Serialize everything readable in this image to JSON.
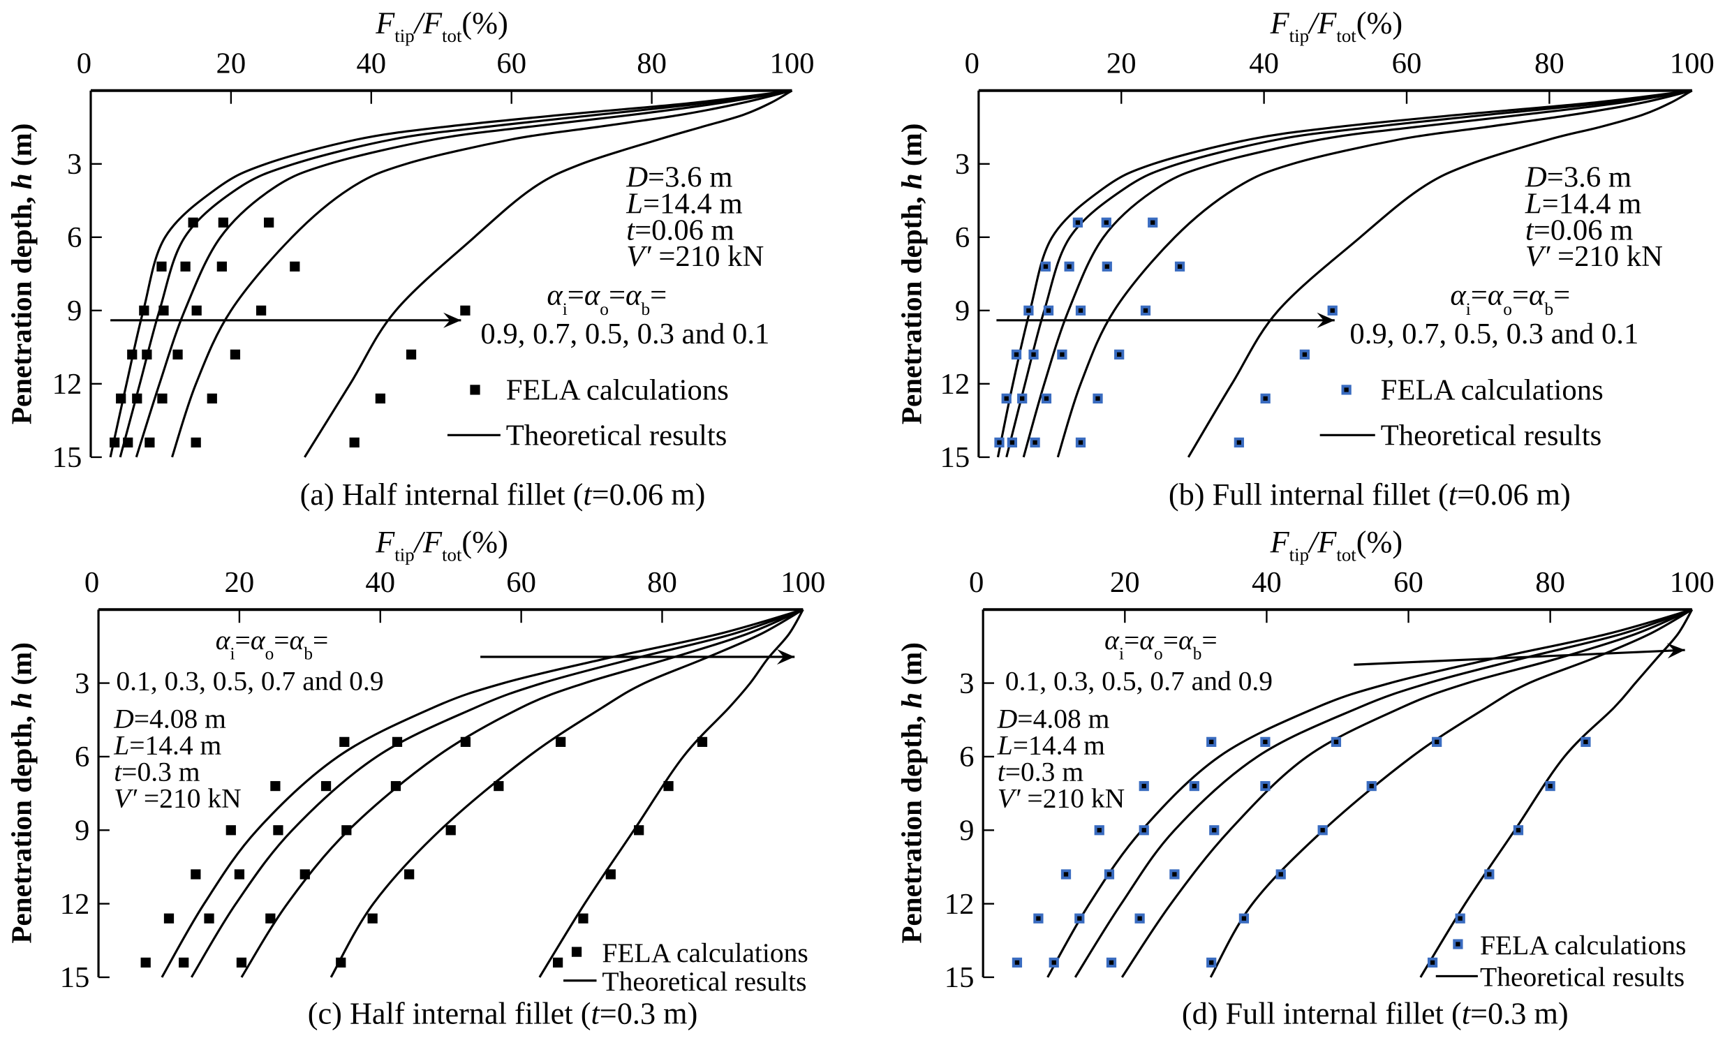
{
  "chart_data": [
    {
      "id": "a",
      "type": "scatter+line",
      "caption": {
        "prefix": "(a) Half internal fillet (",
        "var": "t",
        "suffix": "=0.06 m)"
      },
      "xlabel": {
        "sym1": "F",
        "sub1": "tip",
        "slash": "/",
        "sym2": "F",
        "sub2": "tot",
        "unit": "(%)"
      },
      "ylabel": {
        "prefix": "Penetration depth, ",
        "var": "h",
        "suffix": " (m)"
      },
      "xlim": [
        0,
        100
      ],
      "ylim": [
        0,
        15
      ],
      "y_inverted": true,
      "xticks": [
        0,
        20,
        40,
        60,
        80,
        100
      ],
      "yticks": [
        3,
        6,
        9,
        12,
        15
      ],
      "params": [
        {
          "var": "D",
          "text": "=3.6 m"
        },
        {
          "var": "L",
          "text": "=14.4 m"
        },
        {
          "var": "t",
          "text": "=0.06 m"
        },
        {
          "var": "V′",
          "text": " =210 kN"
        }
      ],
      "alpha_label": {
        "sym": "α",
        "subs": [
          "i",
          "o",
          "b"
        ],
        "eq": "="
      },
      "alpha_values": "0.9, 0.7, 0.5, 0.3 and 0.1",
      "arrow": {
        "from": [
          2.8,
          9.4
        ],
        "to": [
          52.8,
          9.4
        ]
      },
      "legend": {
        "markers": "FELA calculations",
        "line": "Theoretical results",
        "position": "bottom-right"
      },
      "marker_color": "#000000",
      "curves": {
        "h": [
          0,
          0.5,
          1,
          1.5,
          2,
          3,
          4,
          6,
          9,
          12,
          15
        ],
        "series": [
          {
            "alpha": 0.9,
            "x": [
              100,
              86,
              67,
              50,
              38,
              25,
              18,
              10.6,
              7.5,
              5.1,
              2.8
            ]
          },
          {
            "alpha": 0.7,
            "x": [
              100,
              88,
              72,
              56,
              43,
              29,
              21,
              13.4,
              9.8,
              7.0,
              4.2
            ]
          },
          {
            "alpha": 0.5,
            "x": [
              100,
              90,
              77,
              62,
              49,
              34,
              26,
              18.5,
              13.4,
              9.8,
              6.5
            ]
          },
          {
            "alpha": 0.3,
            "x": [
              100,
              93,
              84,
              72,
              60,
              45,
              37,
              28.7,
              20,
              15,
              11.6
            ]
          },
          {
            "alpha": 0.1,
            "x": [
              100,
              97,
              93,
              87,
              81,
              70,
              63,
              54.7,
              43.5,
              37,
              30.5
            ]
          }
        ]
      },
      "fela": {
        "h": [
          5.4,
          7.2,
          9,
          10.8,
          12.6,
          14.4
        ],
        "series": [
          {
            "alpha": 0.9,
            "x": [
              14.6,
              10.1,
              7.6,
              5.9,
              4.3,
              3.4
            ]
          },
          {
            "alpha": 0.7,
            "x": [
              18.9,
              13.5,
              10.4,
              8.0,
              6.6,
              5.3
            ]
          },
          {
            "alpha": 0.5,
            "x": [
              25.4,
              18.7,
              15.1,
              12.4,
              10.2,
              8.4
            ]
          },
          {
            "alpha": 0.3,
            "x": [
              null,
              29.1,
              24.3,
              20.6,
              17.3,
              15.0
            ]
          },
          {
            "alpha": 0.1,
            "x": [
              null,
              null,
              53.4,
              45.7,
              41.3,
              37.6
            ]
          }
        ]
      }
    },
    {
      "id": "b",
      "type": "scatter+line",
      "caption": {
        "prefix": "(b) Full internal fillet (",
        "var": "t",
        "suffix": "=0.06 m)"
      },
      "xlabel": {
        "sym1": "F",
        "sub1": "tip",
        "slash": "/",
        "sym2": "F",
        "sub2": "tot",
        "unit": "(%)"
      },
      "ylabel": {
        "prefix": "Penetration depth, ",
        "var": "h",
        "suffix": " (m)"
      },
      "xlim": [
        0,
        100
      ],
      "ylim": [
        0,
        15
      ],
      "y_inverted": true,
      "xticks": [
        0,
        20,
        40,
        60,
        80,
        100
      ],
      "yticks": [
        3,
        6,
        9,
        12,
        15
      ],
      "params": [
        {
          "var": "D",
          "text": "=3.6 m"
        },
        {
          "var": "L",
          "text": "=14.4 m"
        },
        {
          "var": "t",
          "text": "=0.06 m"
        },
        {
          "var": "V′",
          "text": " =210 kN"
        }
      ],
      "alpha_label": {
        "sym": "α",
        "subs": [
          "i",
          "o",
          "b"
        ],
        "eq": "="
      },
      "alpha_values": "0.9, 0.7, 0.5, 0.3 and 0.1",
      "arrow": {
        "from": [
          2.5,
          9.4
        ],
        "to": [
          49.9,
          9.4
        ]
      },
      "legend": {
        "markers": "FELA calculations",
        "line": "Theoretical results",
        "position": "bottom-right"
      },
      "marker_color": "#3a6cc0",
      "curves": {
        "h": [
          0,
          0.5,
          1,
          1.5,
          2,
          3,
          4,
          6,
          9,
          12,
          15
        ],
        "series": [
          {
            "alpha": 0.9,
            "x": [
              100,
              86,
              67,
              50,
              38,
              24.5,
              17.5,
              10.3,
              7.2,
              4.8,
              2.7
            ]
          },
          {
            "alpha": 0.7,
            "x": [
              100,
              88,
              71,
              55,
              42,
              28,
              20.5,
              12.8,
              9.2,
              6.5,
              3.9
            ]
          },
          {
            "alpha": 0.5,
            "x": [
              100,
              90,
              76,
              61,
              48,
              33,
              25,
              17.5,
              12.6,
              9.2,
              6.3
            ]
          },
          {
            "alpha": 0.3,
            "x": [
              100,
              93,
              83,
              71,
              59,
              44,
              36,
              27.5,
              19,
              14.3,
              11.1
            ]
          },
          {
            "alpha": 0.1,
            "x": [
              100,
              97,
              93,
              87,
              80,
              69,
              62,
              53.5,
              42,
              35.5,
              29.4
            ]
          }
        ]
      },
      "fela": {
        "h": [
          5.4,
          7.2,
          9,
          10.8,
          12.6,
          14.4
        ],
        "series": [
          {
            "alpha": 0.9,
            "x": [
              13.9,
              9.4,
              7.0,
              5.3,
              3.9,
              2.9
            ]
          },
          {
            "alpha": 0.7,
            "x": [
              17.9,
              12.7,
              9.8,
              7.7,
              6.1,
              4.7
            ]
          },
          {
            "alpha": 0.5,
            "x": [
              24.4,
              18.0,
              14.3,
              11.7,
              9.5,
              7.9
            ]
          },
          {
            "alpha": 0.3,
            "x": [
              null,
              28.2,
              23.4,
              19.7,
              16.7,
              14.3
            ]
          },
          {
            "alpha": 0.1,
            "x": [
              null,
              null,
              49.6,
              45.7,
              40.2,
              36.5
            ]
          }
        ]
      }
    },
    {
      "id": "c",
      "type": "scatter+line",
      "caption": {
        "prefix": "(c) Half internal fillet (",
        "var": "t",
        "suffix": "=0.3 m)"
      },
      "xlabel": {
        "sym1": "F",
        "sub1": "tip",
        "slash": "/",
        "sym2": "F",
        "sub2": "tot",
        "unit": "(%)"
      },
      "ylabel": {
        "prefix": "Penetration depth, ",
        "var": "h",
        "suffix": " (m)"
      },
      "xlim": [
        0,
        100
      ],
      "ylim": [
        0,
        15
      ],
      "y_inverted": true,
      "xticks": [
        0,
        20,
        40,
        60,
        80,
        100
      ],
      "yticks": [
        3,
        6,
        9,
        12,
        15
      ],
      "params": [
        {
          "var": "D",
          "text": "=4.08 m"
        },
        {
          "var": "L",
          "text": "=14.4 m"
        },
        {
          "var": "t",
          "text": "=0.3 m"
        },
        {
          "var": "V′",
          "text": " =210 kN"
        }
      ],
      "alpha_label": {
        "sym": "α",
        "subs": [
          "i",
          "o",
          "b"
        ],
        "eq": "="
      },
      "alpha_values": "0.1, 0.3, 0.5, 0.7 and 0.9",
      "arrow": {
        "from": [
          54.2,
          1.93
        ],
        "to": [
          98.8,
          1.93
        ]
      },
      "legend": {
        "markers": "FELA calculations",
        "line": "Theoretical results",
        "position": "bottom-right"
      },
      "marker_color": "#000000",
      "curves": {
        "h": [
          0,
          1,
          2,
          3,
          4,
          6,
          9,
          12,
          15
        ],
        "series": [
          {
            "alpha": 0.1,
            "x": [
              100,
              88,
              72,
              57.5,
              47.5,
              34,
              22.5,
              15,
              9.0
            ]
          },
          {
            "alpha": 0.3,
            "x": [
              100,
              90,
              76,
              63,
              53.5,
              39.5,
              27.5,
              19.5,
              13.2
            ]
          },
          {
            "alpha": 0.5,
            "x": [
              100,
              92,
              81,
              69,
              60,
              48,
              35.5,
              26.8,
              20.3
            ]
          },
          {
            "alpha": 0.7,
            "x": [
              100,
              94,
              86,
              77.5,
              71.5,
              61,
              48.5,
              39,
              33.0
            ]
          },
          {
            "alpha": 0.9,
            "x": [
              100,
              98,
              95,
              92.5,
              89.5,
              83,
              76,
              69,
              62.6
            ]
          }
        ]
      },
      "fela": {
        "h": [
          5.4,
          7.2,
          9,
          10.8,
          12.6,
          14.4
        ],
        "series": [
          {
            "alpha": 0.1,
            "x": [
              34.9,
              25.1,
              18.8,
              13.8,
              10.0,
              6.7
            ]
          },
          {
            "alpha": 0.3,
            "x": [
              42.4,
              32.3,
              25.5,
              20.0,
              15.7,
              12.1
            ]
          },
          {
            "alpha": 0.5,
            "x": [
              52.1,
              42.2,
              35.2,
              29.3,
              24.4,
              20.3
            ]
          },
          {
            "alpha": 0.7,
            "x": [
              65.6,
              56.8,
              50.0,
              44.1,
              38.9,
              34.4
            ]
          },
          {
            "alpha": 0.9,
            "x": [
              85.7,
              80.9,
              76.7,
              72.7,
              68.8,
              65.2
            ]
          }
        ]
      }
    },
    {
      "id": "d",
      "type": "scatter+line",
      "caption": {
        "prefix": "(d) Full internal fillet (",
        "var": "t",
        "suffix": "=0.3 m)"
      },
      "xlabel": {
        "sym1": "F",
        "sub1": "tip",
        "slash": "/",
        "sym2": "F",
        "sub2": "tot",
        "unit": "(%)"
      },
      "ylabel": {
        "prefix": "Penetration depth, ",
        "var": "h",
        "suffix": " (m)"
      },
      "xlim": [
        0,
        100
      ],
      "ylim": [
        0,
        15
      ],
      "y_inverted": true,
      "xticks": [
        0,
        20,
        40,
        60,
        80,
        100
      ],
      "yticks": [
        3,
        6,
        9,
        12,
        15
      ],
      "params": [
        {
          "var": "D",
          "text": "=4.08 m"
        },
        {
          "var": "L",
          "text": "=14.4 m"
        },
        {
          "var": "t",
          "text": "=0.3 m"
        },
        {
          "var": "V′",
          "text": " =210 kN"
        }
      ],
      "alpha_label": {
        "sym": "α",
        "subs": [
          "i",
          "o",
          "b"
        ],
        "eq": "="
      },
      "alpha_values": "0.1, 0.3, 0.5, 0.7 and 0.9",
      "arrow": {
        "from": [
          52.3,
          2.25
        ],
        "to": [
          99.0,
          1.65
        ]
      },
      "legend": {
        "markers": "FELA calculations",
        "line": "Theoretical results",
        "position": "bottom-right"
      },
      "marker_color": "#3a6cc0",
      "curves": {
        "h": [
          0,
          1,
          2,
          3,
          4,
          6,
          9,
          12,
          15
        ],
        "series": [
          {
            "alpha": 0.1,
            "x": [
              100,
              88,
              72,
              57.4,
              47,
              33.3,
              22.4,
              15,
              9.1
            ]
          },
          {
            "alpha": 0.3,
            "x": [
              100,
              90,
              76,
              62.8,
              53,
              38.7,
              27,
              19.5,
              13.0
            ]
          },
          {
            "alpha": 0.5,
            "x": [
              100,
              92,
              81,
              68.3,
              59,
              45.7,
              34.8,
              26.5,
              19.6
            ]
          },
          {
            "alpha": 0.7,
            "x": [
              100,
              94,
              86,
              77,
              71,
              60.5,
              48,
              38,
              32.1
            ]
          },
          {
            "alpha": 0.9,
            "x": [
              100,
              98,
              95,
              92,
              89,
              82,
              75,
              68,
              61.7
            ]
          }
        ]
      },
      "fela": {
        "h": [
          5.4,
          7.2,
          9,
          10.8,
          12.6,
          14.4
        ],
        "series": [
          {
            "alpha": 0.1,
            "x": [
              32.2,
              22.7,
              16.4,
              11.7,
              7.8,
              4.8
            ]
          },
          {
            "alpha": 0.3,
            "x": [
              39.8,
              29.8,
              22.7,
              17.8,
              13.6,
              10.0
            ]
          },
          {
            "alpha": 0.5,
            "x": [
              49.8,
              39.8,
              32.6,
              27.0,
              22.1,
              18.1
            ]
          },
          {
            "alpha": 0.7,
            "x": [
              64.0,
              54.8,
              47.9,
              42.0,
              36.8,
              32.2
            ]
          },
          {
            "alpha": 0.9,
            "x": [
              85.0,
              80.0,
              75.5,
              71.4,
              67.3,
              63.4
            ]
          }
        ]
      }
    }
  ]
}
